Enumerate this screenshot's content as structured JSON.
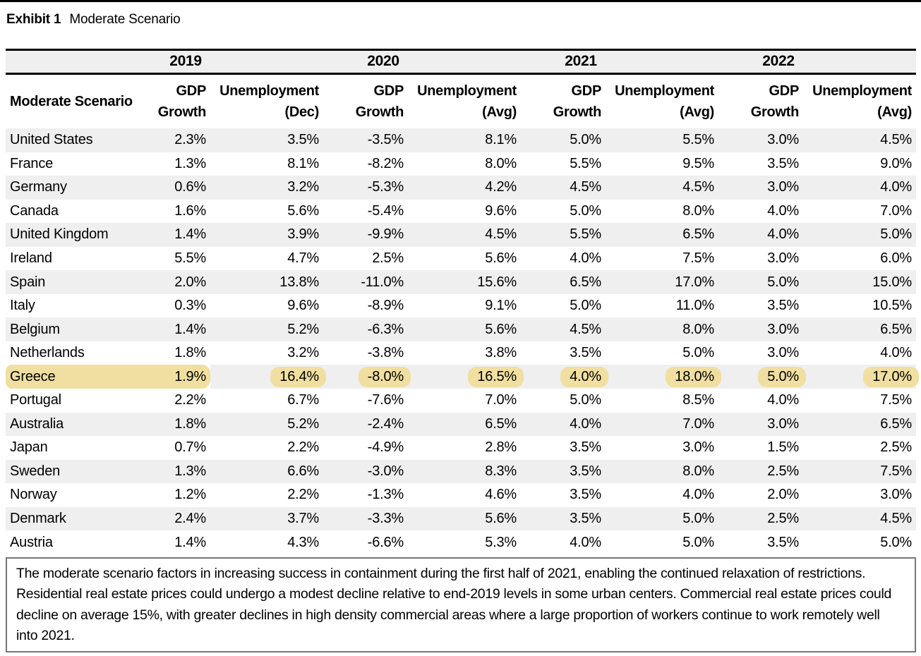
{
  "title": {
    "exhibit": "Exhibit 1",
    "subtitle": "Moderate Scenario"
  },
  "table": {
    "row_header_label": "Moderate Scenario",
    "year_groups": [
      {
        "year": "2019",
        "gdp_line1": "GDP",
        "gdp_line2": "Growth",
        "unemp_line1": "Unemployment",
        "unemp_line2": "(Dec)"
      },
      {
        "year": "2020",
        "gdp_line1": "GDP",
        "gdp_line2": "Growth",
        "unemp_line1": "Unemployment",
        "unemp_line2": "(Avg)"
      },
      {
        "year": "2021",
        "gdp_line1": "GDP",
        "gdp_line2": "Growth",
        "unemp_line1": "Unemployment",
        "unemp_line2": "(Avg)"
      },
      {
        "year": "2022",
        "gdp_line1": "GDP",
        "gdp_line2": "Growth",
        "unemp_line1": "Unemployment",
        "unemp_line2": "(Avg)"
      }
    ],
    "rows": [
      {
        "country": "United States",
        "values": [
          "2.3%",
          "3.5%",
          "-3.5%",
          "8.1%",
          "5.0%",
          "5.5%",
          "3.0%",
          "4.5%"
        ],
        "highlighted": false
      },
      {
        "country": "France",
        "values": [
          "1.3%",
          "8.1%",
          "-8.2%",
          "8.0%",
          "5.5%",
          "9.5%",
          "3.5%",
          "9.0%"
        ],
        "highlighted": false
      },
      {
        "country": "Germany",
        "values": [
          "0.6%",
          "3.2%",
          "-5.3%",
          "4.2%",
          "4.5%",
          "4.5%",
          "3.0%",
          "4.0%"
        ],
        "highlighted": false
      },
      {
        "country": "Canada",
        "values": [
          "1.6%",
          "5.6%",
          "-5.4%",
          "9.6%",
          "5.0%",
          "8.0%",
          "4.0%",
          "7.0%"
        ],
        "highlighted": false
      },
      {
        "country": "United Kingdom",
        "values": [
          "1.4%",
          "3.9%",
          "-9.9%",
          "4.5%",
          "5.5%",
          "6.5%",
          "4.0%",
          "5.0%"
        ],
        "highlighted": false
      },
      {
        "country": "Ireland",
        "values": [
          "5.5%",
          "4.7%",
          "2.5%",
          "5.6%",
          "4.0%",
          "7.5%",
          "3.0%",
          "6.0%"
        ],
        "highlighted": false
      },
      {
        "country": "Spain",
        "values": [
          "2.0%",
          "13.8%",
          "-11.0%",
          "15.6%",
          "6.5%",
          "17.0%",
          "5.0%",
          "15.0%"
        ],
        "highlighted": false
      },
      {
        "country": "Italy",
        "values": [
          "0.3%",
          "9.6%",
          "-8.9%",
          "9.1%",
          "5.0%",
          "11.0%",
          "3.5%",
          "10.5%"
        ],
        "highlighted": false
      },
      {
        "country": "Belgium",
        "values": [
          "1.4%",
          "5.2%",
          "-6.3%",
          "5.6%",
          "4.5%",
          "8.0%",
          "3.0%",
          "6.5%"
        ],
        "highlighted": false
      },
      {
        "country": "Netherlands",
        "values": [
          "1.8%",
          "3.2%",
          "-3.8%",
          "3.8%",
          "3.5%",
          "5.0%",
          "3.0%",
          "4.0%"
        ],
        "highlighted": false
      },
      {
        "country": "Greece",
        "values": [
          "1.9%",
          "16.4%",
          "-8.0%",
          "16.5%",
          "4.0%",
          "18.0%",
          "5.0%",
          "17.0%"
        ],
        "highlighted": true
      },
      {
        "country": "Portugal",
        "values": [
          "2.2%",
          "6.7%",
          "-7.6%",
          "7.0%",
          "5.0%",
          "8.5%",
          "4.0%",
          "7.5%"
        ],
        "highlighted": false
      },
      {
        "country": "Australia",
        "values": [
          "1.8%",
          "5.2%",
          "-2.4%",
          "6.5%",
          "4.0%",
          "7.0%",
          "3.0%",
          "6.5%"
        ],
        "highlighted": false
      },
      {
        "country": "Japan",
        "values": [
          "0.7%",
          "2.2%",
          "-4.9%",
          "2.8%",
          "3.5%",
          "3.0%",
          "1.5%",
          "2.5%"
        ],
        "highlighted": false
      },
      {
        "country": "Sweden",
        "values": [
          "1.3%",
          "6.6%",
          "-3.0%",
          "8.3%",
          "3.5%",
          "8.0%",
          "2.5%",
          "7.5%"
        ],
        "highlighted": false
      },
      {
        "country": "Norway",
        "values": [
          "1.2%",
          "2.2%",
          "-1.3%",
          "4.6%",
          "3.5%",
          "4.0%",
          "2.0%",
          "3.0%"
        ],
        "highlighted": false
      },
      {
        "country": "Denmark",
        "values": [
          "2.4%",
          "3.7%",
          "-3.3%",
          "5.6%",
          "3.5%",
          "5.0%",
          "2.5%",
          "4.5%"
        ],
        "highlighted": false
      },
      {
        "country": "Austria",
        "values": [
          "1.4%",
          "4.3%",
          "-6.6%",
          "5.3%",
          "4.0%",
          "5.0%",
          "3.5%",
          "5.0%"
        ],
        "highlighted": false
      }
    ]
  },
  "footnote": "The moderate scenario factors in increasing success in containment during the first half of 2021, enabling the continued relaxation of restrictions. Residential real estate prices could undergo a modest decline relative to end-2019 levels in some urban centers. Commercial real estate prices could decline on average 15%, with greater declines in high density commercial areas where a large proportion of workers continue to work remotely well into 2021.",
  "colors": {
    "highlight": "#f0dfa0",
    "stripe": "#efefef",
    "rule": "#000000",
    "note_border": "#767676"
  }
}
